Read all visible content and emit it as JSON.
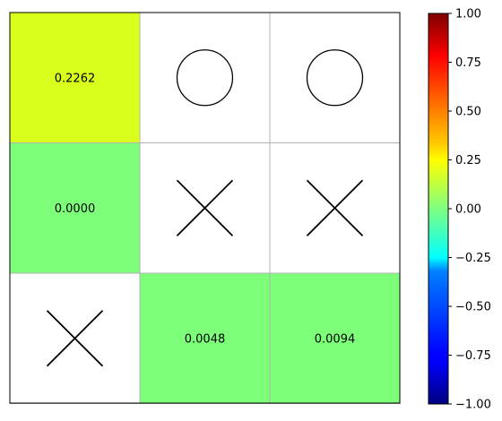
{
  "board": {
    "rows": [
      [
        {
          "type": "value",
          "value": "0.2262",
          "color": "#d9ff1c"
        },
        {
          "type": "O"
        },
        {
          "type": "O"
        }
      ],
      [
        {
          "type": "value",
          "value": "0.0000",
          "color": "#7dff7a"
        },
        {
          "type": "X"
        },
        {
          "type": "X"
        }
      ],
      [
        {
          "type": "X"
        },
        {
          "type": "value",
          "value": "0.0048",
          "color": "#7dff7a"
        },
        {
          "type": "value",
          "value": "0.0094",
          "color": "#7dff7a"
        }
      ]
    ]
  },
  "colorbar": {
    "colormap": "jet",
    "range": [
      -1.0,
      1.0
    ],
    "ticks": [
      "1.00",
      "0.75",
      "0.50",
      "0.25",
      "0.00",
      "−0.25",
      "−0.50",
      "−0.75",
      "−1.00"
    ],
    "colors": [
      "#800000",
      "#ff0000",
      "#ff8000",
      "#ffff00",
      "#80ff80",
      "#00ffff",
      "#0080ff",
      "#0000ff",
      "#000080"
    ]
  }
}
